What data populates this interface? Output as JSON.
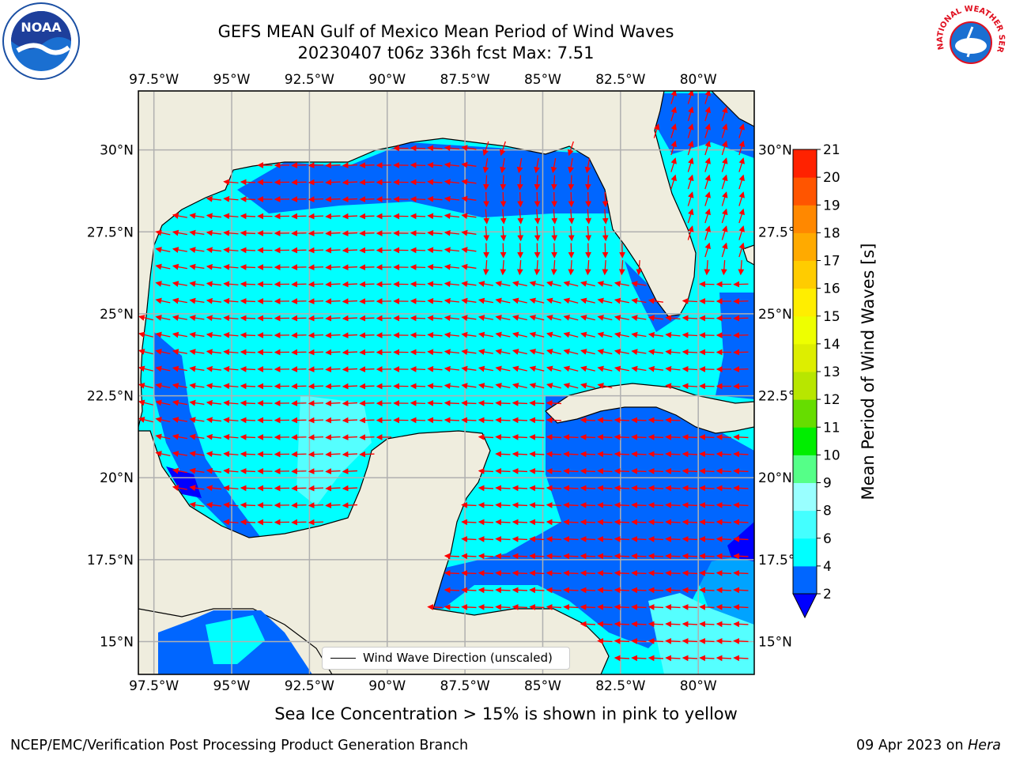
{
  "title": {
    "line1": "GEFS MEAN Gulf of Mexico Mean Period of Wind Waves",
    "line2": "20230407 t06z 336h fcst   Max: 7.51"
  },
  "logos": {
    "left": "noaa-logo",
    "right_text": "NATIONAL WEATHER SERVICE"
  },
  "map": {
    "lon_ticks": [
      "97.5°W",
      "95°W",
      "92.5°W",
      "90°W",
      "87.5°W",
      "85°W",
      "82.5°W",
      "80°W"
    ],
    "lon_values": [
      -97.5,
      -95,
      -92.5,
      -90,
      -87.5,
      -85,
      -82.5,
      -80
    ],
    "lat_ticks": [
      "30°N",
      "27.5°N",
      "25°N",
      "22.5°N",
      "20°N",
      "17.5°N",
      "15°N"
    ],
    "lat_values": [
      30,
      27.5,
      25,
      22.5,
      20,
      17.5,
      15
    ],
    "lon_range": [
      -98,
      -78.2
    ],
    "lat_range": [
      14,
      31.8
    ],
    "land_color": "#efedde",
    "grid_color": "#b0b0b0",
    "arrow_color": "#ff0000"
  },
  "colorbar": {
    "label": "Mean Period of Wind Waves [s]",
    "ticks": [
      "2",
      "4",
      "6",
      "8",
      "9",
      "10",
      "11",
      "12",
      "13",
      "14",
      "15",
      "16",
      "17",
      "18",
      "19",
      "20",
      "21"
    ],
    "colors": [
      "#0066ff",
      "#00ffff",
      "#44ffff",
      "#99ffff",
      "#55ff88",
      "#00ee00",
      "#66dd00",
      "#b8e600",
      "#ddee00",
      "#eeff00",
      "#ffee00",
      "#ffcc00",
      "#ffaa00",
      "#ff8800",
      "#ff5500",
      "#ff2200",
      "#ff0000"
    ],
    "under_color": "#0000ff"
  },
  "legend": {
    "label": "Wind Wave Direction (unscaled)"
  },
  "notes": {
    "sea_ice": "Sea Ice Concentration > 15% is shown in pink to yellow",
    "footer_left": "NCEP/EMC/Verification Post Processing Product Generation Branch",
    "footer_date": "09 Apr 2023 on ",
    "footer_host": "Hera"
  }
}
